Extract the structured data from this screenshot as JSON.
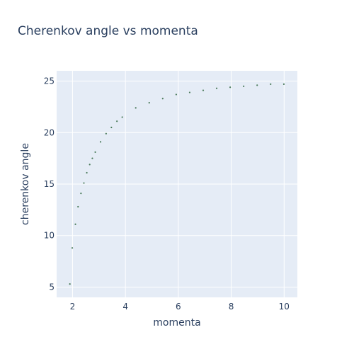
{
  "chart_data": {
    "type": "scatter",
    "title": "Cherenkov angle vs momenta",
    "xlabel": "momenta",
    "ylabel": "cherenkov angle",
    "xlim": [
      1.4,
      10.5
    ],
    "ylim": [
      4,
      26
    ],
    "xticks": [
      2,
      4,
      6,
      8,
      10
    ],
    "yticks": [
      5,
      10,
      15,
      20,
      25
    ],
    "grid": true,
    "colors": {
      "plot_bg": "#e5ecf6",
      "grid": "#ffffff",
      "marker": "#4a7a5a",
      "text": "#2a3f5f"
    },
    "x": [
      1.9,
      1.99,
      2.11,
      2.21,
      2.32,
      2.43,
      2.54,
      2.65,
      2.75,
      2.86,
      3.06,
      3.27,
      3.47,
      3.68,
      3.88,
      4.39,
      4.9,
      5.41,
      5.92,
      6.43,
      6.94,
      7.45,
      7.96,
      8.47,
      8.98,
      9.49,
      9.99
    ],
    "y": [
      5.3,
      8.8,
      11.1,
      12.8,
      14.1,
      15.1,
      16.1,
      16.9,
      17.5,
      18.1,
      19.1,
      19.9,
      20.5,
      21.1,
      21.5,
      22.4,
      22.9,
      23.3,
      23.7,
      23.9,
      24.1,
      24.3,
      24.4,
      24.5,
      24.6,
      24.7,
      24.7
    ]
  }
}
